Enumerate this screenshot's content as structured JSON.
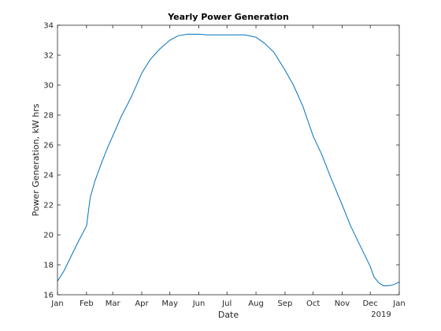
{
  "chart_data": {
    "type": "line",
    "title": "Yearly Power Generation",
    "xlabel": "Date",
    "ylabel": "Power Generation, kW hrs",
    "x_tick_labels": [
      "Jan",
      "Feb",
      "Mar",
      "Apr",
      "May",
      "Jun",
      "Jul",
      "Aug",
      "Sep",
      "Oct",
      "Nov",
      "Dec",
      "Jan"
    ],
    "x_secondary_label": "2019",
    "ylim": [
      16,
      34
    ],
    "y_ticks": [
      16,
      18,
      20,
      22,
      24,
      26,
      28,
      30,
      32,
      34
    ],
    "xlim": [
      "2018-01-01",
      "2019-01-01"
    ],
    "grid": false,
    "line_color": "#0072bd",
    "series": [
      {
        "x": [
          "2018-01-01",
          "2018-01-08",
          "2018-01-15",
          "2018-01-22",
          "2018-02-01",
          "2018-02-05",
          "2018-02-10",
          "2018-02-17",
          "2018-02-24",
          "2018-03-01",
          "2018-03-10",
          "2018-03-20",
          "2018-03-25",
          "2018-04-01",
          "2018-04-10",
          "2018-04-20",
          "2018-05-01",
          "2018-05-10",
          "2018-05-20",
          "2018-06-01",
          "2018-06-10",
          "2018-06-20",
          "2018-07-01",
          "2018-07-10",
          "2018-07-20",
          "2018-08-01",
          "2018-08-10",
          "2018-08-20",
          "2018-09-01",
          "2018-09-10",
          "2018-09-20",
          "2018-10-01",
          "2018-10-10",
          "2018-10-15",
          "2018-10-20",
          "2018-11-01",
          "2018-11-10",
          "2018-11-20",
          "2018-12-01",
          "2018-12-05",
          "2018-12-10",
          "2018-12-15",
          "2018-12-20",
          "2018-12-25",
          "2019-01-01"
        ],
        "y": [
          16.9,
          17.6,
          18.5,
          19.4,
          20.6,
          22.5,
          23.6,
          24.8,
          25.9,
          26.6,
          27.9,
          29.1,
          29.8,
          30.8,
          31.7,
          32.4,
          33.0,
          33.3,
          33.4,
          33.4,
          33.35,
          33.35,
          33.35,
          33.35,
          33.35,
          33.2,
          32.8,
          32.2,
          31.0,
          30.0,
          28.6,
          26.6,
          25.4,
          24.6,
          23.8,
          22.0,
          20.6,
          19.3,
          17.9,
          17.2,
          16.8,
          16.6,
          16.6,
          16.65,
          16.85
        ]
      }
    ]
  }
}
